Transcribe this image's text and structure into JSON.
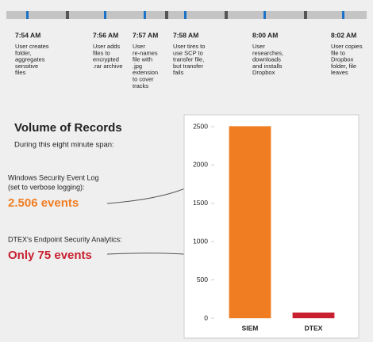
{
  "timeline": [
    {
      "time": "7:54 AM",
      "lines": [
        "User creates",
        "folder,",
        "aggregates",
        "sensitive",
        "files"
      ]
    },
    {
      "time": "7:56 AM",
      "lines": [
        "User adds",
        "files to",
        "encrypted",
        ".rar archive"
      ]
    },
    {
      "time": "7:57 AM",
      "lines": [
        "User",
        "re-names",
        "file with",
        ".jpg",
        "extension",
        "to cover",
        "tracks"
      ]
    },
    {
      "time": "7:58 AM",
      "lines": [
        "User tires to",
        "use SCP to",
        "transfer file,",
        "but transfer",
        "fails"
      ]
    },
    {
      "time": "8:00 AM",
      "lines": [
        "User",
        "researches,",
        "downloads",
        "and installs",
        "Dropbox"
      ]
    },
    {
      "time": "8:02 AM",
      "lines": [
        "User copies",
        "file to",
        "Dropbox",
        "folder, file",
        "leaves"
      ]
    }
  ],
  "heading": "Volume of Records",
  "subheading": "During this eight minute span:",
  "siem_caption": [
    "Windows Security Event Log",
    "(set to verbose logging):"
  ],
  "siem_count": "2.506 events",
  "dtex_caption": "DTEX's Endpoint Security Analytics:",
  "dtex_count": "Only 75 events",
  "chart_data": {
    "type": "bar",
    "categories": [
      "SIEM",
      "DTEX"
    ],
    "values": [
      2506,
      75
    ],
    "colors": [
      "#f07d22",
      "#c8202f"
    ],
    "ylim": [
      0,
      2500
    ],
    "yticks": [
      0,
      500,
      1000,
      1500,
      2000,
      2500
    ],
    "grid": false
  }
}
